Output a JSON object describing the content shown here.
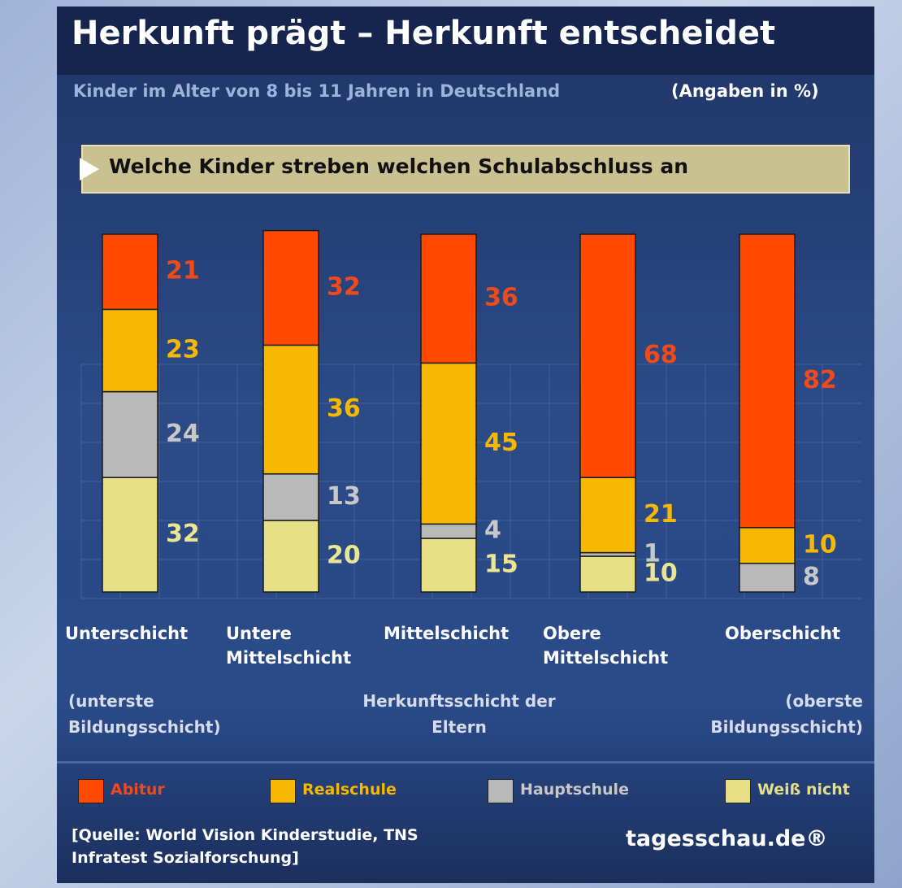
{
  "chart_data": {
    "type": "stacked-bar",
    "title": "Herkunft prägt – Herkunft entscheidet",
    "subtitle": "Kinder im Alter von 8 bis 11 Jahren in Deutschland",
    "unit_note": "(Angaben in %)",
    "question": "Welche Kinder streben welchen Schulabschluss an",
    "categories": [
      "Unterschicht",
      "Untere Mittelschicht",
      "Mittelschicht",
      "Obere Mittelschicht",
      "Oberschicht"
    ],
    "series": [
      {
        "name": "Weiß nicht",
        "color": "#e6df86",
        "label_color": "#ece690",
        "values": [
          32,
          20,
          15,
          10,
          null
        ]
      },
      {
        "name": "Hauptschule",
        "color": "#b9b9b9",
        "label_color": "#c8c8c8",
        "values": [
          24,
          13,
          4,
          1,
          8
        ]
      },
      {
        "name": "Realschule",
        "color": "#f6b800",
        "label_color": "#f6b800",
        "values": [
          23,
          36,
          45,
          21,
          10
        ]
      },
      {
        "name": "Abitur",
        "color": "#ff4a00",
        "label_color": "#f04a1a",
        "values": [
          21,
          32,
          36,
          68,
          82
        ]
      }
    ],
    "notes": [
      "(unterste Bildungsschicht)",
      "Herkunftsschicht der Eltern",
      "(oberste Bildungsschicht)"
    ],
    "source": "[Quelle: World Vision Kinderstudie, TNS Infratest Sozialforschung]",
    "brand": "tagesschau.de®"
  }
}
